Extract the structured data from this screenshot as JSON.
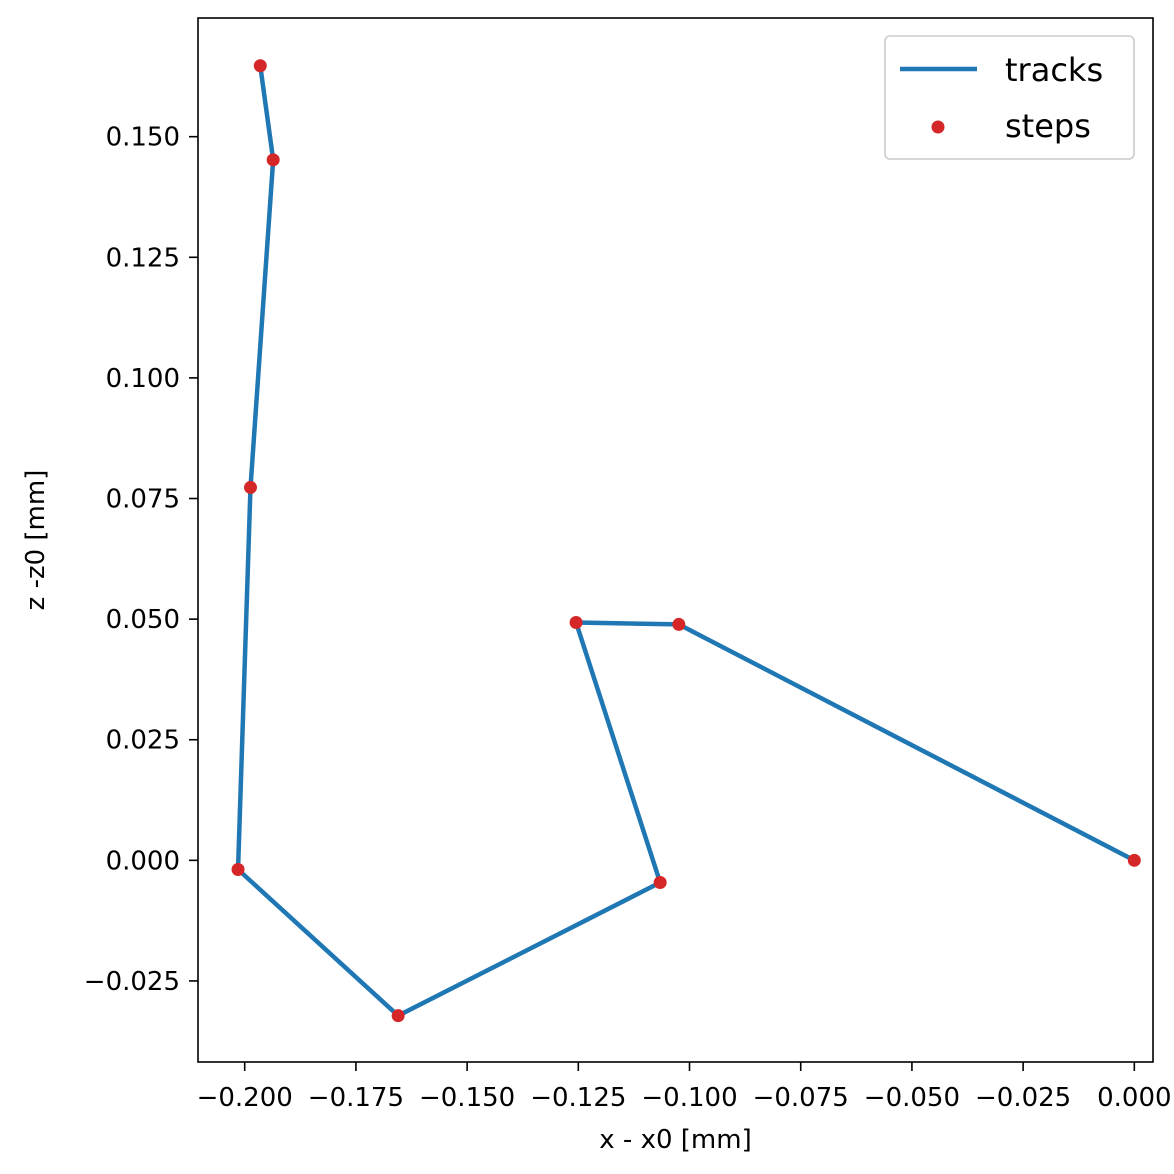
{
  "chart_data": {
    "type": "line",
    "title": "",
    "xlabel": "x - x0 [mm]",
    "ylabel": "z -z0 [mm]",
    "xlim": [
      -0.2105,
      0.0042
    ],
    "ylim": [
      -0.0418,
      0.1746
    ],
    "xticks": [
      -0.2,
      -0.175,
      -0.15,
      -0.125,
      -0.1,
      -0.075,
      -0.05,
      -0.025,
      0.0
    ],
    "xtick_labels": [
      "−0.200",
      "−0.175",
      "−0.150",
      "−0.125",
      "−0.100",
      "−0.075",
      "−0.050",
      "−0.025",
      "0.000"
    ],
    "yticks": [
      -0.025,
      0.0,
      0.025,
      0.05,
      0.075,
      0.1,
      0.125,
      0.15
    ],
    "ytick_labels": [
      "−0.025",
      "0.000",
      "0.025",
      "0.050",
      "0.075",
      "0.100",
      "0.125",
      "0.150"
    ],
    "grid": false,
    "legend_position": "top-right",
    "series": [
      {
        "name": "tracks",
        "kind": "line",
        "color": "#1f77b4",
        "x": [
          0.0,
          -0.1024,
          -0.1255,
          -0.1066,
          -0.1655,
          -0.2015,
          -0.1987,
          -0.1936,
          -0.1965
        ],
        "y": [
          0.0,
          0.0489,
          0.0493,
          -0.0046,
          -0.0322,
          -0.0019,
          0.0773,
          0.1452,
          0.1647
        ]
      },
      {
        "name": "steps",
        "kind": "scatter",
        "color": "#d62728",
        "x": [
          0.0,
          -0.1024,
          -0.1255,
          -0.1066,
          -0.1655,
          -0.2015,
          -0.1987,
          -0.1936,
          -0.1965
        ],
        "y": [
          0.0,
          0.0489,
          0.0493,
          -0.0046,
          -0.0322,
          -0.0019,
          0.0773,
          0.1452,
          0.1647
        ]
      }
    ]
  }
}
